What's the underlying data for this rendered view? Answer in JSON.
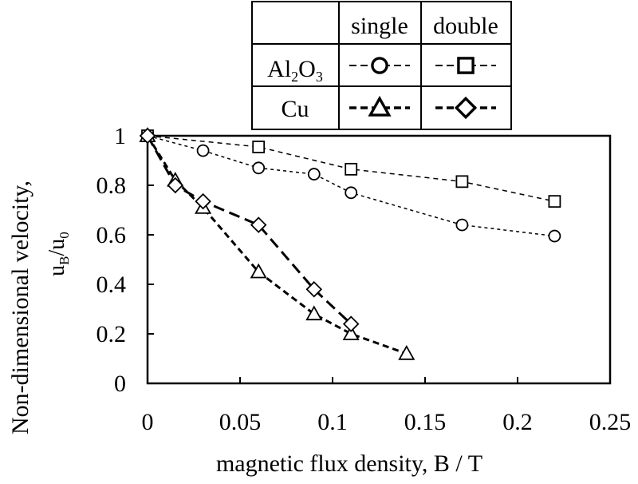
{
  "chart_data": {
    "type": "line",
    "xlabel": "magnetic flux density,  B / T",
    "ylabel_line1": "Non-dimensional velocity,",
    "ylabel_line2_main": "u",
    "ylabel_line2_sub1": "B",
    "ylabel_line2_sep": "/u",
    "ylabel_line2_sub2": "0",
    "xlim": [
      0,
      0.25
    ],
    "ylim": [
      0,
      1
    ],
    "x_ticks": [
      0,
      0.05,
      0.1,
      0.15,
      0.2,
      0.25
    ],
    "x_tick_labels": [
      "0",
      "0.05",
      "0.1",
      "0.15",
      "0.2",
      "0.25"
    ],
    "y_ticks": [
      0,
      0.2,
      0.4,
      0.6,
      0.8,
      1
    ],
    "y_tick_labels": [
      "0",
      "0.2",
      "0.4",
      "0.6",
      "0.8",
      "1"
    ],
    "grid": false,
    "legend": {
      "placement": "top",
      "col_headers": [
        "single",
        "double"
      ],
      "row_headers": [
        {
          "main": "Al",
          "sub1": "2",
          "mid": "O",
          "sub2": "3"
        },
        {
          "main": "Cu",
          "sub1": "",
          "mid": "",
          "sub2": ""
        }
      ]
    },
    "series": [
      {
        "material": "Al2O3",
        "config": "single",
        "marker": "circle",
        "dash": "4,4",
        "stroke_width": 1.5,
        "x": [
          0,
          0.03,
          0.06,
          0.09,
          0.11,
          0.17,
          0.22
        ],
        "y": [
          1.0,
          0.94,
          0.87,
          0.845,
          0.77,
          0.64,
          0.595
        ]
      },
      {
        "material": "Al2O3",
        "config": "double",
        "marker": "square",
        "dash": "6,5",
        "stroke_width": 1.5,
        "x": [
          0,
          0.06,
          0.11,
          0.17,
          0.22
        ],
        "y": [
          1.0,
          0.955,
          0.865,
          0.815,
          0.735
        ]
      },
      {
        "material": "Cu",
        "config": "single",
        "marker": "triangle",
        "dash": "8,5",
        "stroke_width": 3,
        "x": [
          0,
          0.015,
          0.03,
          0.06,
          0.09,
          0.11,
          0.14
        ],
        "y": [
          1.0,
          0.82,
          0.71,
          0.45,
          0.28,
          0.2,
          0.12
        ]
      },
      {
        "material": "Cu",
        "config": "double",
        "marker": "diamond",
        "dash": "14,7",
        "stroke_width": 3,
        "x": [
          0,
          0.015,
          0.03,
          0.06,
          0.09,
          0.11
        ],
        "y": [
          1.0,
          0.8,
          0.735,
          0.64,
          0.38,
          0.24
        ]
      }
    ]
  }
}
